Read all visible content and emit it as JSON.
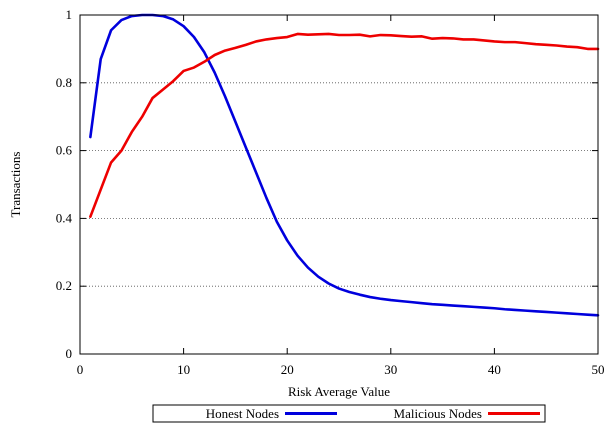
{
  "chart_data": {
    "type": "line",
    "xlabel": "Risk Average Value",
    "ylabel": "Transactions",
    "xlim": [
      0,
      50
    ],
    "ylim": [
      0,
      1
    ],
    "xticks": [
      "0",
      "10",
      "20",
      "30",
      "40",
      "50"
    ],
    "yticks": [
      "0",
      "0.2",
      "0.4",
      "0.6",
      "0.8",
      "1"
    ],
    "grid": "horizontal dotted",
    "legend_position": "bottom",
    "series": [
      {
        "name": "Honest Nodes",
        "color": "#0000dd",
        "x": [
          1,
          2,
          3,
          4,
          5,
          6,
          7,
          8,
          9,
          10,
          11,
          12,
          13,
          14,
          15,
          16,
          17,
          18,
          19,
          20,
          21,
          22,
          23,
          24,
          25,
          26,
          27,
          28,
          29,
          30,
          31,
          32,
          33,
          34,
          35,
          36,
          37,
          38,
          39,
          40,
          41,
          42,
          43,
          44,
          45,
          46,
          47,
          48,
          49,
          50
        ],
        "values": [
          0.64,
          0.87,
          0.955,
          0.985,
          0.997,
          1.0,
          1.0,
          0.997,
          0.987,
          0.967,
          0.935,
          0.89,
          0.83,
          0.76,
          0.685,
          0.61,
          0.535,
          0.46,
          0.39,
          0.335,
          0.29,
          0.255,
          0.228,
          0.208,
          0.193,
          0.183,
          0.175,
          0.168,
          0.163,
          0.159,
          0.156,
          0.153,
          0.15,
          0.147,
          0.145,
          0.143,
          0.141,
          0.139,
          0.137,
          0.135,
          0.132,
          0.13,
          0.128,
          0.126,
          0.124,
          0.122,
          0.12,
          0.118,
          0.116,
          0.114
        ]
      },
      {
        "name": "Malicious Nodes",
        "color": "#ee0000",
        "x": [
          1,
          2,
          3,
          4,
          5,
          6,
          7,
          8,
          9,
          10,
          11,
          12,
          13,
          14,
          15,
          16,
          17,
          18,
          19,
          20,
          21,
          22,
          23,
          24,
          25,
          26,
          27,
          28,
          29,
          30,
          31,
          32,
          33,
          34,
          35,
          36,
          37,
          38,
          39,
          40,
          41,
          42,
          43,
          44,
          45,
          46,
          47,
          48,
          49,
          50
        ],
        "values": [
          0.405,
          0.485,
          0.565,
          0.6,
          0.655,
          0.7,
          0.755,
          0.78,
          0.805,
          0.835,
          0.845,
          0.862,
          0.882,
          0.895,
          0.903,
          0.912,
          0.922,
          0.928,
          0.932,
          0.935,
          0.944,
          0.942,
          0.943,
          0.944,
          0.941,
          0.941,
          0.942,
          0.937,
          0.941,
          0.94,
          0.938,
          0.936,
          0.937,
          0.93,
          0.932,
          0.931,
          0.928,
          0.928,
          0.925,
          0.922,
          0.92,
          0.92,
          0.917,
          0.914,
          0.912,
          0.91,
          0.907,
          0.905,
          0.9,
          0.9
        ]
      }
    ]
  }
}
